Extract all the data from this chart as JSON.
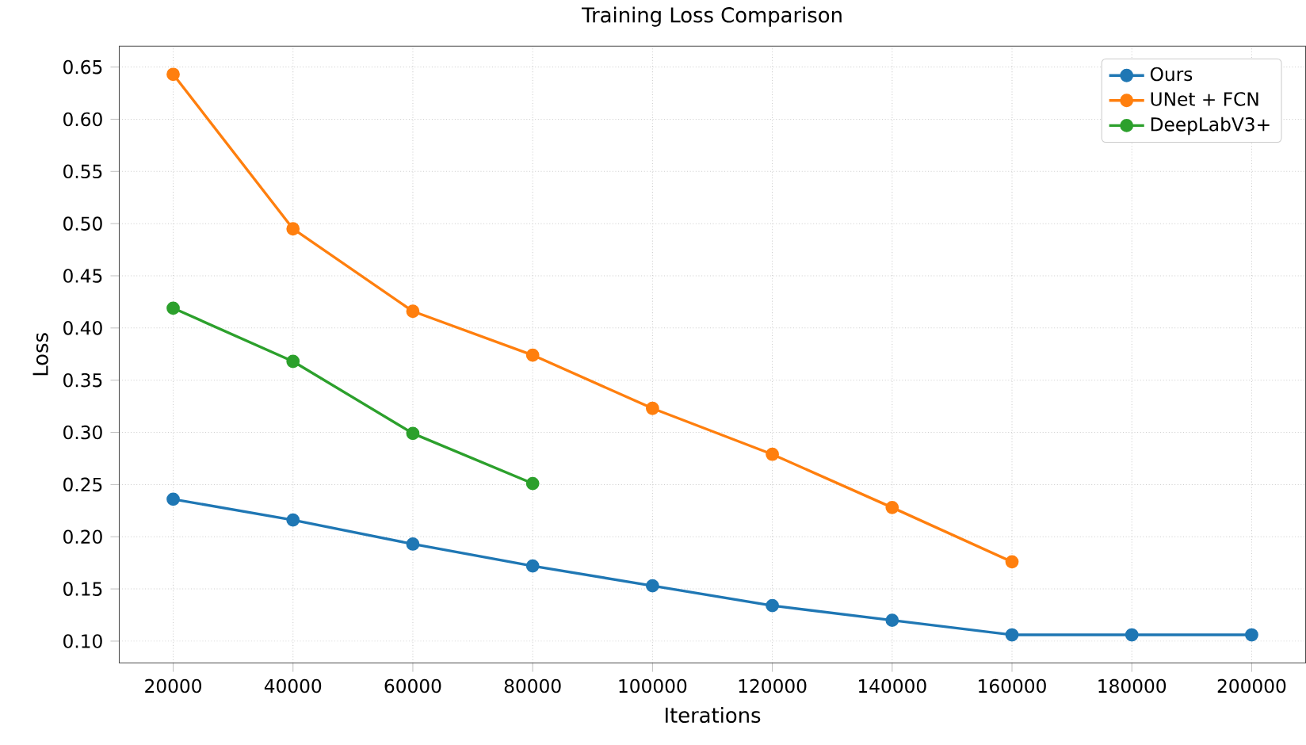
{
  "chart_data": {
    "type": "line",
    "title": "Training Loss Comparison",
    "xlabel": "Iterations",
    "ylabel": "Loss",
    "x": [
      20000,
      40000,
      60000,
      80000,
      100000,
      120000,
      140000,
      160000,
      180000,
      200000
    ],
    "series": [
      {
        "name": "Ours",
        "color": "#1f77b4",
        "values": [
          0.236,
          0.216,
          0.193,
          0.172,
          0.153,
          0.134,
          0.12,
          0.106,
          0.106,
          0.106
        ]
      },
      {
        "name": "UNet + FCN",
        "color": "#ff7f0e",
        "values": [
          0.643,
          0.495,
          0.416,
          0.374,
          0.323,
          0.279,
          0.228,
          0.176,
          null,
          null
        ]
      },
      {
        "name": "DeepLabV3+",
        "color": "#2ca02c",
        "values": [
          0.419,
          0.368,
          0.299,
          0.251,
          null,
          null,
          null,
          null,
          null,
          null
        ]
      }
    ],
    "xlim": [
      11000,
      209000
    ],
    "ylim": [
      0.079,
      0.67
    ],
    "xticks": [
      20000,
      40000,
      60000,
      80000,
      100000,
      120000,
      140000,
      160000,
      180000,
      200000
    ],
    "yticks": [
      {
        "value": 0.1,
        "label": "0.10"
      },
      {
        "value": 0.15,
        "label": "0.15"
      },
      {
        "value": 0.2,
        "label": "0.20"
      },
      {
        "value": 0.25,
        "label": "0.25"
      },
      {
        "value": 0.3,
        "label": "0.30"
      },
      {
        "value": 0.35,
        "label": "0.35"
      },
      {
        "value": 0.4,
        "label": "0.40"
      },
      {
        "value": 0.45,
        "label": "0.45"
      },
      {
        "value": 0.5,
        "label": "0.50"
      },
      {
        "value": 0.55,
        "label": "0.55"
      },
      {
        "value": 0.6,
        "label": "0.60"
      },
      {
        "value": 0.65,
        "label": "0.65"
      }
    ],
    "grid": true,
    "legend": "top right",
    "marker": "circle",
    "line_style": "solid"
  }
}
